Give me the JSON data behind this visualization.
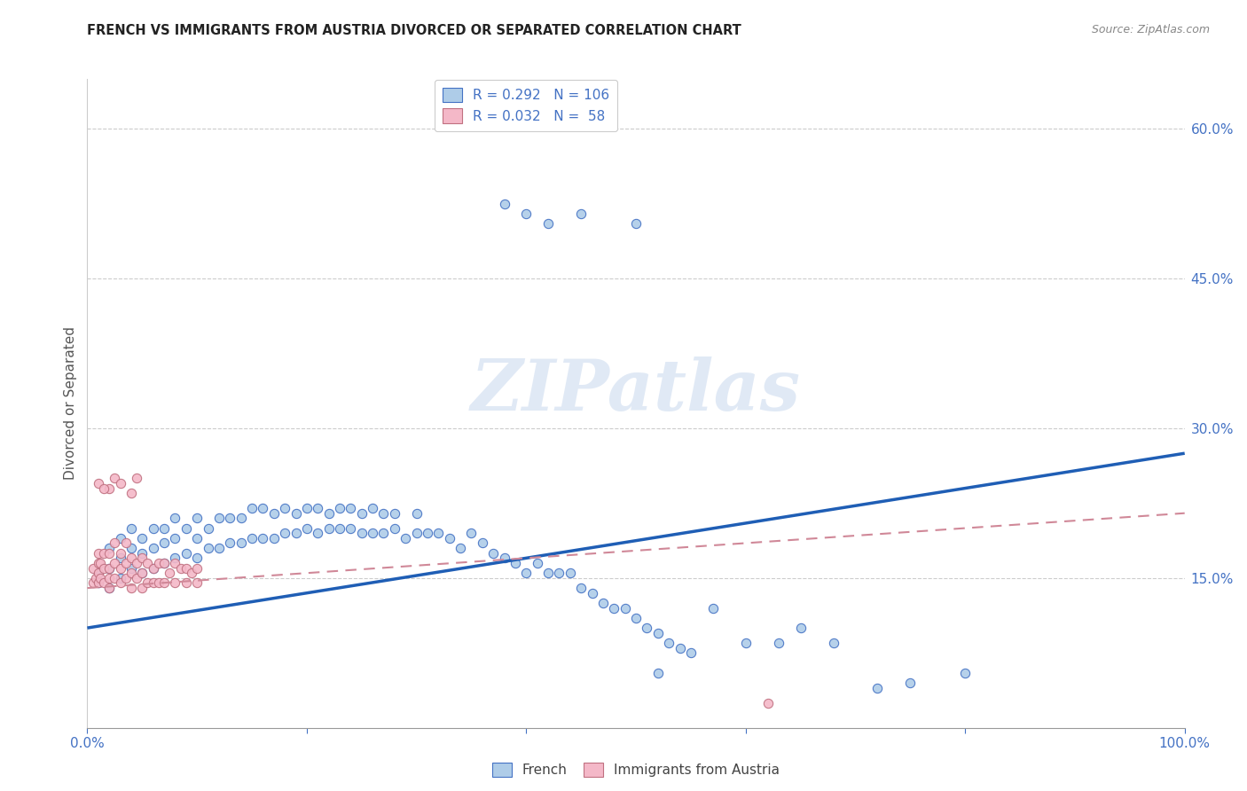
{
  "title": "FRENCH VS IMMIGRANTS FROM AUSTRIA DIVORCED OR SEPARATED CORRELATION CHART",
  "source": "Source: ZipAtlas.com",
  "ylabel": "Divorced or Separated",
  "watermark": "ZIPatlas",
  "xlim": [
    0.0,
    1.0
  ],
  "ylim": [
    0.0,
    0.65
  ],
  "xtick_positions": [
    0.0,
    0.2,
    0.4,
    0.6,
    0.8,
    1.0
  ],
  "xtick_labels": [
    "0.0%",
    "",
    "",
    "",
    "",
    "100.0%"
  ],
  "ytick_values": [
    0.15,
    0.3,
    0.45,
    0.6
  ],
  "ytick_labels": [
    "15.0%",
    "30.0%",
    "45.0%",
    "60.0%"
  ],
  "legend_r1": "R = 0.292   N = 106",
  "legend_r2": "R = 0.032   N =  58",
  "legend_label1": "French",
  "legend_label2": "Immigrants from Austria",
  "color_french_fill": "#aecce8",
  "color_french_edge": "#4472c4",
  "color_austria_fill": "#f4b8c8",
  "color_austria_edge": "#c07080",
  "color_line_french": "#1f5eb5",
  "color_line_austria": "#d08898",
  "axis_color": "#4472c4",
  "french_line_start_y": 0.1,
  "french_line_end_y": 0.275,
  "austria_line_start_y": 0.14,
  "austria_line_end_y": 0.215,
  "french_x": [
    0.01,
    0.01,
    0.02,
    0.02,
    0.02,
    0.03,
    0.03,
    0.03,
    0.04,
    0.04,
    0.04,
    0.05,
    0.05,
    0.05,
    0.06,
    0.06,
    0.06,
    0.07,
    0.07,
    0.07,
    0.08,
    0.08,
    0.08,
    0.09,
    0.09,
    0.1,
    0.1,
    0.1,
    0.11,
    0.11,
    0.12,
    0.12,
    0.13,
    0.13,
    0.14,
    0.14,
    0.15,
    0.15,
    0.16,
    0.16,
    0.17,
    0.17,
    0.18,
    0.18,
    0.19,
    0.19,
    0.2,
    0.2,
    0.21,
    0.21,
    0.22,
    0.22,
    0.23,
    0.23,
    0.24,
    0.24,
    0.25,
    0.25,
    0.26,
    0.26,
    0.27,
    0.27,
    0.28,
    0.28,
    0.29,
    0.3,
    0.3,
    0.31,
    0.32,
    0.33,
    0.34,
    0.35,
    0.36,
    0.37,
    0.38,
    0.39,
    0.4,
    0.41,
    0.42,
    0.43,
    0.44,
    0.45,
    0.46,
    0.47,
    0.48,
    0.49,
    0.5,
    0.51,
    0.52,
    0.53,
    0.54,
    0.55,
    0.57,
    0.6,
    0.63,
    0.65,
    0.68,
    0.72,
    0.75,
    0.8,
    0.38,
    0.4,
    0.42,
    0.45,
    0.5,
    0.52
  ],
  "french_y": [
    0.145,
    0.155,
    0.14,
    0.16,
    0.18,
    0.15,
    0.17,
    0.19,
    0.16,
    0.18,
    0.2,
    0.155,
    0.175,
    0.19,
    0.16,
    0.18,
    0.2,
    0.165,
    0.185,
    0.2,
    0.17,
    0.19,
    0.21,
    0.175,
    0.2,
    0.17,
    0.19,
    0.21,
    0.18,
    0.2,
    0.18,
    0.21,
    0.185,
    0.21,
    0.185,
    0.21,
    0.19,
    0.22,
    0.19,
    0.22,
    0.19,
    0.215,
    0.195,
    0.22,
    0.195,
    0.215,
    0.2,
    0.22,
    0.195,
    0.22,
    0.2,
    0.215,
    0.2,
    0.22,
    0.2,
    0.22,
    0.195,
    0.215,
    0.195,
    0.22,
    0.195,
    0.215,
    0.2,
    0.215,
    0.19,
    0.195,
    0.215,
    0.195,
    0.195,
    0.19,
    0.18,
    0.195,
    0.185,
    0.175,
    0.17,
    0.165,
    0.155,
    0.165,
    0.155,
    0.155,
    0.155,
    0.14,
    0.135,
    0.125,
    0.12,
    0.12,
    0.11,
    0.1,
    0.095,
    0.085,
    0.08,
    0.075,
    0.12,
    0.085,
    0.085,
    0.1,
    0.085,
    0.04,
    0.045,
    0.055,
    0.525,
    0.515,
    0.505,
    0.515,
    0.505,
    0.055
  ],
  "austria_x": [
    0.005,
    0.005,
    0.008,
    0.01,
    0.01,
    0.01,
    0.01,
    0.012,
    0.012,
    0.015,
    0.015,
    0.015,
    0.02,
    0.02,
    0.02,
    0.02,
    0.025,
    0.025,
    0.025,
    0.03,
    0.03,
    0.03,
    0.035,
    0.035,
    0.035,
    0.04,
    0.04,
    0.04,
    0.045,
    0.045,
    0.05,
    0.05,
    0.05,
    0.055,
    0.055,
    0.06,
    0.06,
    0.065,
    0.065,
    0.07,
    0.07,
    0.075,
    0.08,
    0.08,
    0.085,
    0.09,
    0.09,
    0.095,
    0.1,
    0.1,
    0.02,
    0.025,
    0.03,
    0.04,
    0.045,
    0.01,
    0.015,
    0.62
  ],
  "austria_y": [
    0.145,
    0.16,
    0.15,
    0.145,
    0.155,
    0.165,
    0.175,
    0.15,
    0.165,
    0.145,
    0.16,
    0.175,
    0.14,
    0.15,
    0.16,
    0.175,
    0.15,
    0.165,
    0.185,
    0.145,
    0.16,
    0.175,
    0.15,
    0.165,
    0.185,
    0.14,
    0.155,
    0.17,
    0.15,
    0.165,
    0.14,
    0.155,
    0.17,
    0.145,
    0.165,
    0.145,
    0.16,
    0.145,
    0.165,
    0.145,
    0.165,
    0.155,
    0.145,
    0.165,
    0.16,
    0.145,
    0.16,
    0.155,
    0.145,
    0.16,
    0.24,
    0.25,
    0.245,
    0.235,
    0.25,
    0.245,
    0.24,
    0.025
  ]
}
